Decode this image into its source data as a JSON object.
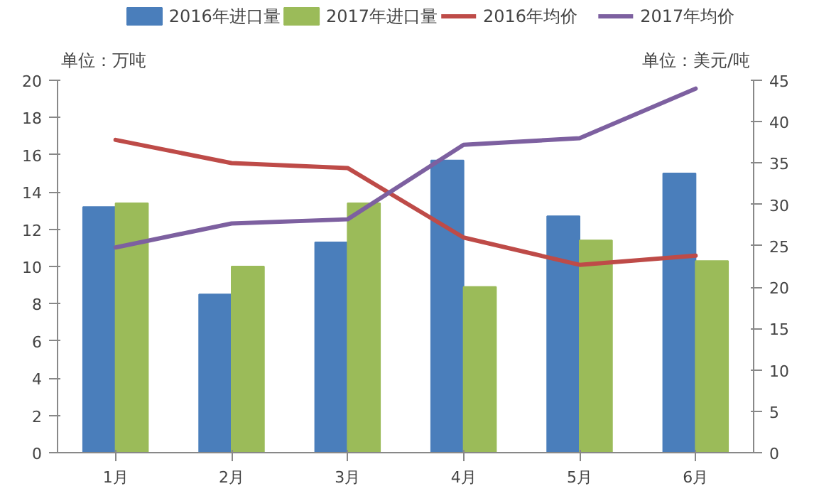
{
  "chart_data": {
    "type": "bar",
    "categories": [
      "1月",
      "2月",
      "3月",
      "4月",
      "5月",
      "6月"
    ],
    "ylabel": "单位：万吨",
    "y2label": "单位：美元/吨",
    "ylim": [
      0,
      20
    ],
    "yticks": [
      0,
      2,
      4,
      6,
      8,
      10,
      12,
      14,
      16,
      18,
      20
    ],
    "y2lim": [
      0,
      45
    ],
    "y2ticks": [
      0,
      5,
      10,
      15,
      20,
      25,
      30,
      35,
      40,
      45
    ],
    "series": [
      {
        "name": "2016年进口量",
        "color": "#4a7ebb",
        "values": [
          13.2,
          8.5,
          11.3,
          15.7,
          12.7,
          15.0
        ]
      },
      {
        "name": "2017年进口量",
        "color": "#9bbb59",
        "values": [
          13.4,
          10.0,
          13.4,
          8.9,
          11.4,
          10.3
        ]
      },
      {
        "name": "2016年均价",
        "type": "line",
        "axis": "y2",
        "color": "#be4b48",
        "values": [
          37.8,
          35.0,
          34.4,
          26.0,
          22.7,
          23.8
        ]
      },
      {
        "name": "2017年均价",
        "type": "line",
        "axis": "y2",
        "color": "#7d60a0",
        "values": [
          24.8,
          27.7,
          28.2,
          37.2,
          38.0,
          44.0
        ]
      }
    ],
    "legend": "top",
    "grid": false,
    "marker": "none",
    "line_style": "solid"
  }
}
